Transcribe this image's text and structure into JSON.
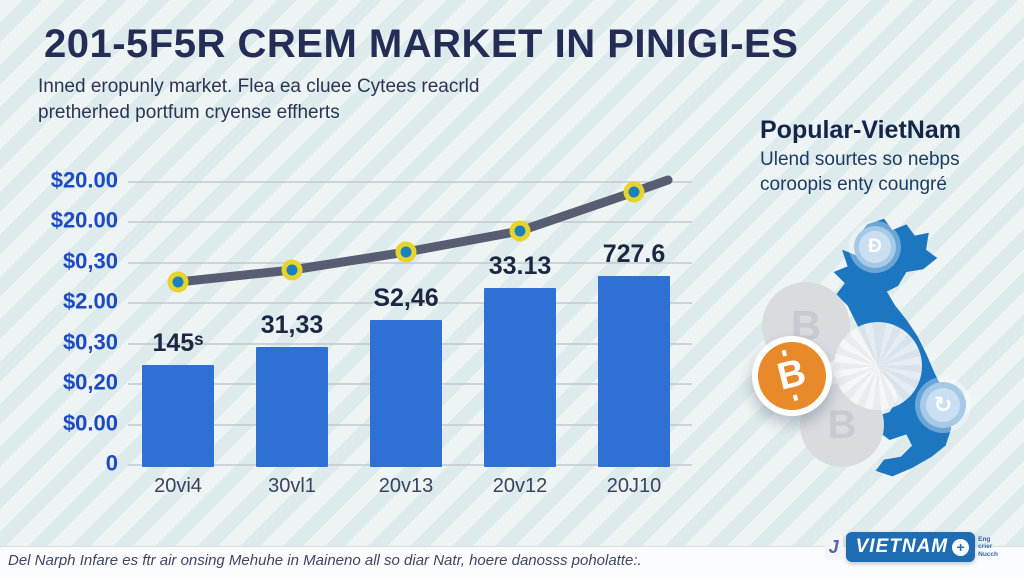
{
  "header": {
    "title": "201-5F5R CREM MARKET IN PINIGI-ES",
    "subtitle_line1": "Inned eropunly market. Flea ea cluee Cytees reacrld",
    "subtitle_line2": "pretherhed portfum cryense effherts"
  },
  "chart_data": {
    "type": "bar",
    "title": "",
    "xlabel": "",
    "ylabel": "",
    "grid": true,
    "legend": "none",
    "categories": [
      "20vi4",
      "30vl1",
      "20v13",
      "20v12",
      "20J10"
    ],
    "y_ticks": [
      "$20.00",
      "$20.00",
      "$0,30",
      "$2.00",
      "$0,30",
      "$0,20",
      "$0.00",
      "0"
    ],
    "bar_series": {
      "name": "market-value-bars",
      "labels": [
        "145ˢ",
        "31,33",
        "S2,46",
        "33.13",
        "727.6"
      ],
      "values": [
        145,
        31.33,
        2.46,
        33.13,
        727.6
      ],
      "heights_rel": [
        0.34,
        0.4,
        0.49,
        0.6,
        0.64
      ],
      "color": "#2f70d4"
    },
    "line_series": {
      "name": "trend-line",
      "values_rel": [
        0.62,
        0.66,
        0.72,
        0.79,
        0.92
      ],
      "tail_rel": 0.96,
      "color": "#585d72",
      "marker_ring_color": "#e6d42b",
      "marker_fill_color": "#1b80c0"
    }
  },
  "side_panel": {
    "heading": "Popular-VietNam",
    "line1": "Ulend sourtes so nebps",
    "line2": "coroopis enty coungré",
    "map_color": "#1d76c0",
    "bitcoin_color": "#e8892a",
    "glyphs": {
      "bitcoin": "B",
      "dong": "Đ",
      "refresh": "↻",
      "gray_coin": "B"
    }
  },
  "footer": {
    "note": "Del Narph Infare es ftr air onsing Mehuhe in Maineno all so diar Natr, hoere danosss poholatte:.",
    "logo_mini": "J",
    "logo_text": "VIETNAM",
    "logo_plus": "+",
    "logo_side_lines": [
      "Eng",
      "crier",
      "Nucch"
    ]
  }
}
